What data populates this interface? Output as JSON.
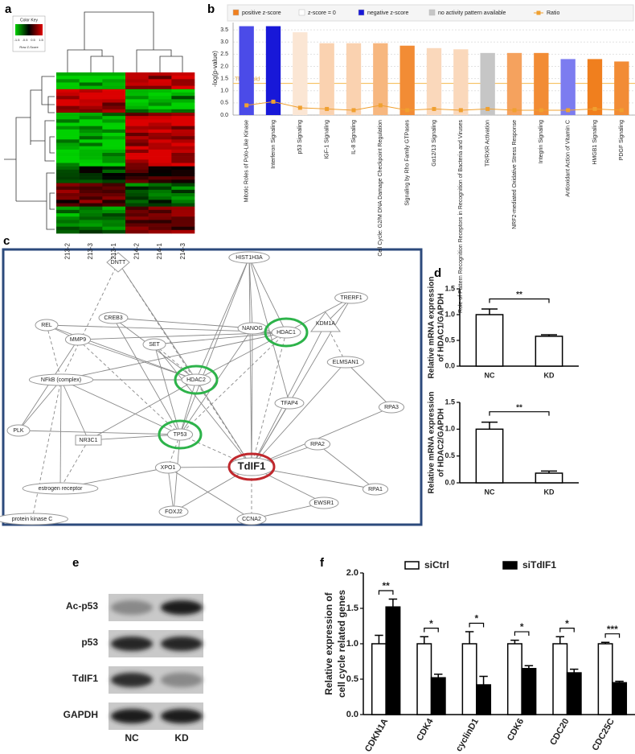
{
  "panel_labels": [
    "a",
    "b",
    "c",
    "d",
    "e",
    "f"
  ],
  "heatmap": {
    "color_key": {
      "title": "Color Key",
      "ticks": [
        -1.5,
        -0.5,
        0.5,
        1.5
      ],
      "xlabel": "Row Z-Score"
    },
    "columns": [
      "213-2",
      "213-3",
      "213-1",
      "214-2",
      "214-1",
      "214-3"
    ]
  },
  "network": {
    "nodes": [
      "DNTT",
      "HIST1H3A",
      "TRERF1",
      "REL",
      "CREB3",
      "NANOG",
      "KDM1A",
      "HDAC1",
      "MMP9",
      "SET",
      "HDAC2",
      "ELMSAN1",
      "NFkB (complex)",
      "TFAP4",
      "TP53",
      "RPA3",
      "PLK",
      "NR3C1",
      "TdIF1",
      "RPA2",
      "estrogen receptor",
      "XPO1",
      "RPA1",
      "protein kinase C",
      "FOXJ2",
      "CCNA2",
      "EWSR1"
    ]
  },
  "blot": {
    "rows": [
      "Ac-p53",
      "p53",
      "TdIF1",
      "GAPDH"
    ],
    "columns": [
      "NC",
      "KD"
    ]
  },
  "chart_data": [
    {
      "type": "bar",
      "ylabel": "-log(p-value)",
      "categories": [
        "Mitotic Roles of Polo-Like Kinase",
        "Interferon Signaling",
        "p53 Signaling",
        "IGF-1 Signaling",
        "IL-8 Signaling",
        "Cell Cycle: G2/M DNA Damage Checkpoint Regulation",
        "Signaling by Rho Family GTPases",
        "Gα12/13 Signaling",
        "Role of Pattern Recognition Receptors in Recognition of Bacteria and Viruses",
        "TR/RXR Activation",
        "NRF2-mediated Oxidative Stress Response",
        "Integrin Signaling",
        "Antioxidant Action of Vitamin C",
        "HMGB1 Signaling",
        "PDGF Signaling"
      ],
      "values": [
        3.65,
        3.65,
        3.4,
        2.95,
        2.95,
        2.95,
        2.85,
        2.75,
        2.7,
        2.55,
        2.55,
        2.55,
        2.3,
        2.3,
        2.2
      ],
      "colors": [
        "#4b4be8",
        "#1818d8",
        "#fbe6d4",
        "#fad2b0",
        "#fad2b0",
        "#f7b77f",
        "#f28c35",
        "#fad8bb",
        "#fad8bb",
        "#c6c6c6",
        "#f5a25e",
        "#f28c35",
        "#7c7cf0",
        "#f07f1e",
        "#f28c35"
      ],
      "line": {
        "name": "Ratio",
        "color": "#f0a030",
        "values": [
          0.4,
          0.55,
          0.3,
          0.25,
          0.2,
          0.4,
          0.2,
          0.25,
          0.2,
          0.25,
          0.2,
          0.2,
          0.2,
          0.25,
          0.2
        ]
      },
      "legend": [
        {
          "name": "positive z-score",
          "color": "#f07f1e"
        },
        {
          "name": "z-score = 0",
          "color": "#ffffff"
        },
        {
          "name": "negative z-score",
          "color": "#1818d8"
        },
        {
          "name": "no activity pattern available",
          "color": "#c6c6c6"
        }
      ],
      "threshold": {
        "value": 1.3,
        "label": "Threshold"
      },
      "ylim": [
        0,
        3.8
      ],
      "yticks": [
        {
          "value": 0,
          "label": "0.0"
        },
        0.5,
        {
          "value": 1,
          "label": "1.0"
        },
        1.5,
        {
          "value": 2,
          "label": "2.0"
        },
        2.5,
        {
          "value": 3,
          "label": "3.0"
        },
        3.5
      ],
      "grid": true
    },
    {
      "type": "bar",
      "ylabel": [
        "Relative mRNA expression",
        "of HDAC1/GAPDH"
      ],
      "categories": [
        "NC",
        "KD"
      ],
      "values": [
        1.0,
        0.58
      ],
      "errors": [
        0.11,
        0.03
      ],
      "color": "#ffffff",
      "annotation": "**",
      "ylim": [
        0,
        1.5
      ],
      "yticks": [
        {
          "value": 0,
          "label": "0.0"
        },
        0.5,
        {
          "value": 1,
          "label": "1.0"
        },
        1.5
      ]
    },
    {
      "type": "bar",
      "ylabel": [
        "Relative mRNA expression",
        "of HDAC2/GAPDH"
      ],
      "categories": [
        "NC",
        "KD"
      ],
      "values": [
        1.0,
        0.18
      ],
      "errors": [
        0.13,
        0.04
      ],
      "color": "#ffffff",
      "annotation": "**",
      "ylim": [
        0,
        1.5
      ],
      "yticks": [
        {
          "value": 0,
          "label": "0.0"
        },
        0.5,
        {
          "value": 1,
          "label": "1.0"
        },
        1.5
      ]
    },
    {
      "type": "bar",
      "ylabel": [
        "Relative expression of",
        "cell cycle related genes"
      ],
      "categories": [
        "CDKN1A",
        "CDK4",
        "cyclinD1",
        "CDK6",
        "CDC20",
        "CDC25C"
      ],
      "series": [
        {
          "name": "siCtrl",
          "color": "#ffffff",
          "values": [
            1.0,
            1.0,
            1.0,
            1.0,
            1.0,
            1.0
          ],
          "errors": [
            0.12,
            0.1,
            0.17,
            0.05,
            0.1,
            0.02
          ]
        },
        {
          "name": "siTdIF1",
          "color": "#000000",
          "values": [
            1.52,
            0.52,
            0.42,
            0.65,
            0.59,
            0.45
          ],
          "errors": [
            0.11,
            0.05,
            0.12,
            0.04,
            0.05,
            0.02
          ]
        }
      ],
      "annotations": [
        "**",
        "*",
        "*",
        "*",
        "*",
        "***"
      ],
      "ylim": [
        0,
        2
      ],
      "yticks": [
        {
          "value": 0,
          "label": "0.0"
        },
        0.5,
        {
          "value": 1,
          "label": "1.0"
        },
        1.5,
        {
          "value": 2,
          "label": "2.0"
        }
      ]
    }
  ]
}
